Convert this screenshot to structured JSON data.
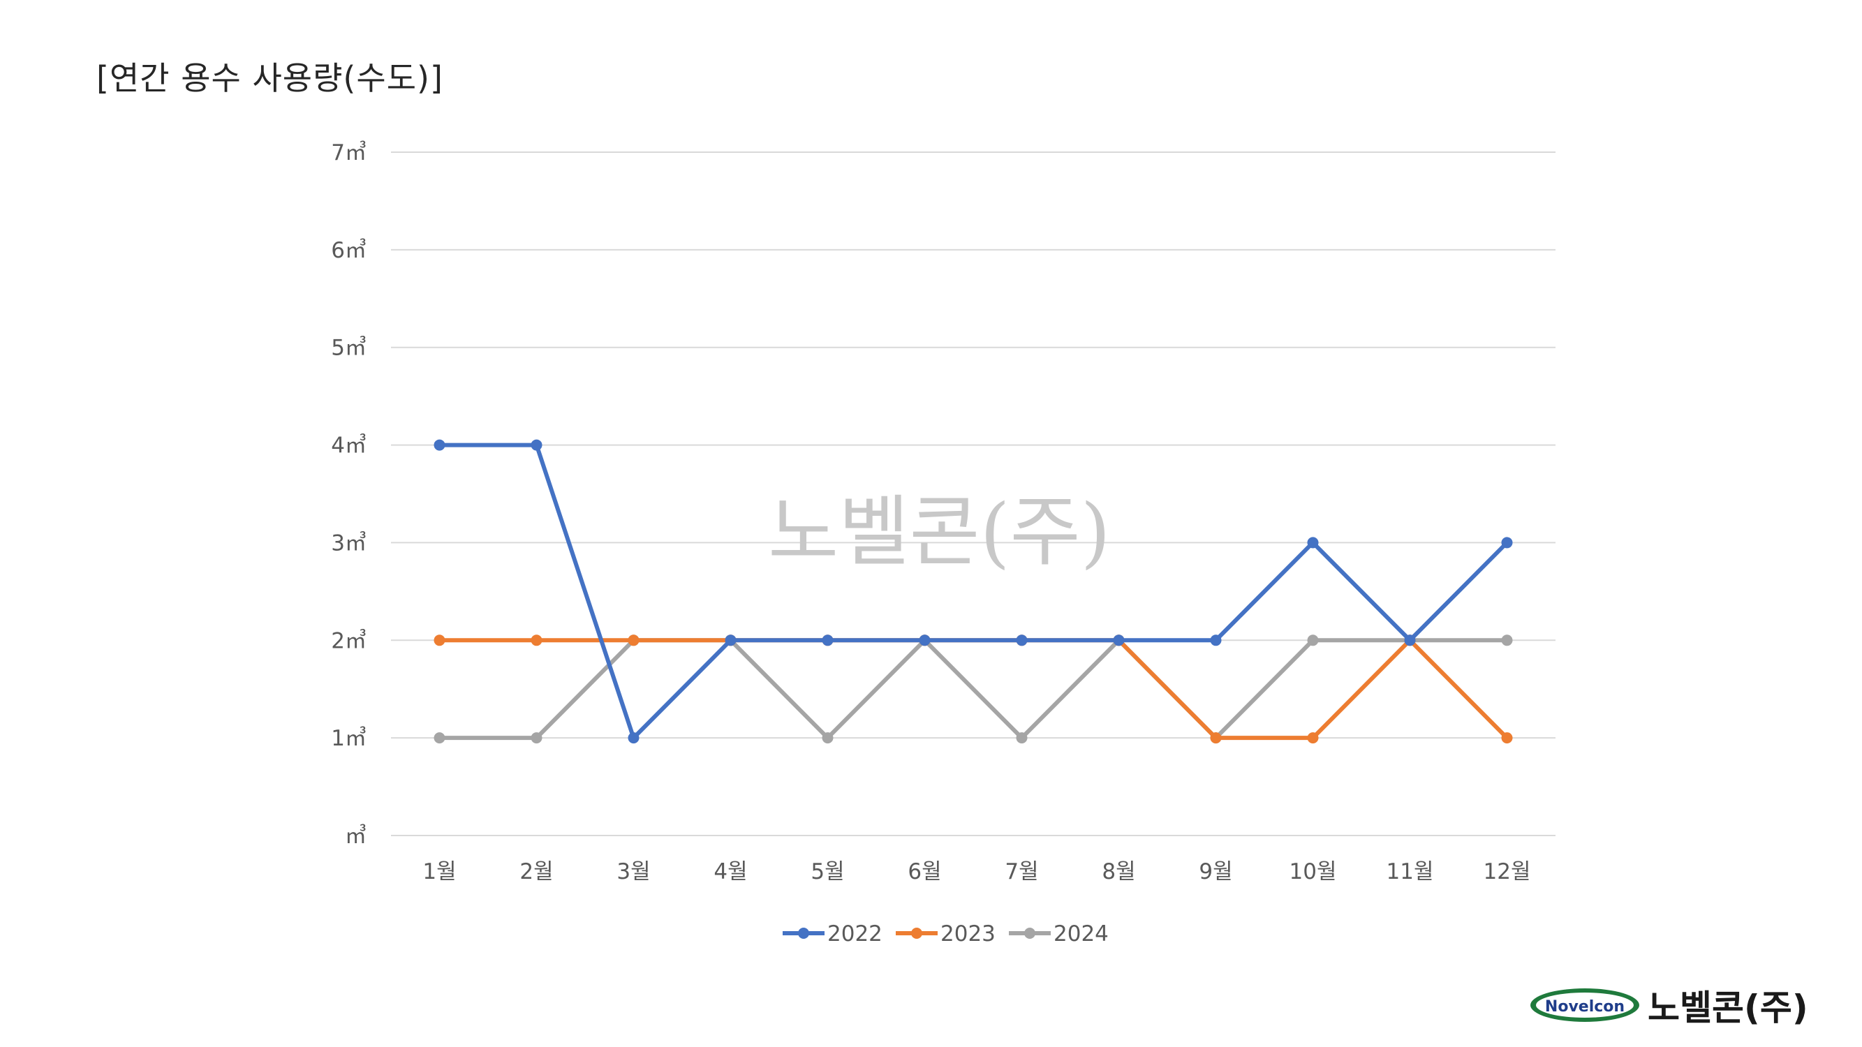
{
  "page_title": "[연간 용수 사용량(수도)]",
  "watermark": "노벨콘(주)",
  "logo": {
    "badge_text": "Novelcon",
    "name": "노벨콘(주)"
  },
  "colors": {
    "2022": "#4472C4",
    "2023": "#ED7D31",
    "2024": "#A5A5A5",
    "grid": "#d9d9d9"
  },
  "chart_data": {
    "type": "line",
    "title": "",
    "xlabel": "",
    "ylabel": "",
    "categories": [
      "1월",
      "2월",
      "3월",
      "4월",
      "5월",
      "6월",
      "7월",
      "8월",
      "9월",
      "10월",
      "11월",
      "12월"
    ],
    "y_ticks": [
      "㎥",
      "1㎥",
      "2㎥",
      "3㎥",
      "4㎥",
      "5㎥",
      "6㎥",
      "7㎥"
    ],
    "ylim": [
      0,
      7
    ],
    "grid": true,
    "legend_position": "bottom",
    "series": [
      {
        "name": "2022",
        "values": [
          4,
          4,
          1,
          2,
          2,
          2,
          2,
          2,
          2,
          3,
          2,
          3
        ]
      },
      {
        "name": "2023",
        "values": [
          2,
          2,
          2,
          2,
          2,
          2,
          2,
          2,
          1,
          1,
          2,
          1
        ]
      },
      {
        "name": "2024",
        "values": [
          1,
          1,
          2,
          2,
          1,
          2,
          1,
          2,
          1,
          2,
          2,
          2
        ]
      }
    ]
  }
}
